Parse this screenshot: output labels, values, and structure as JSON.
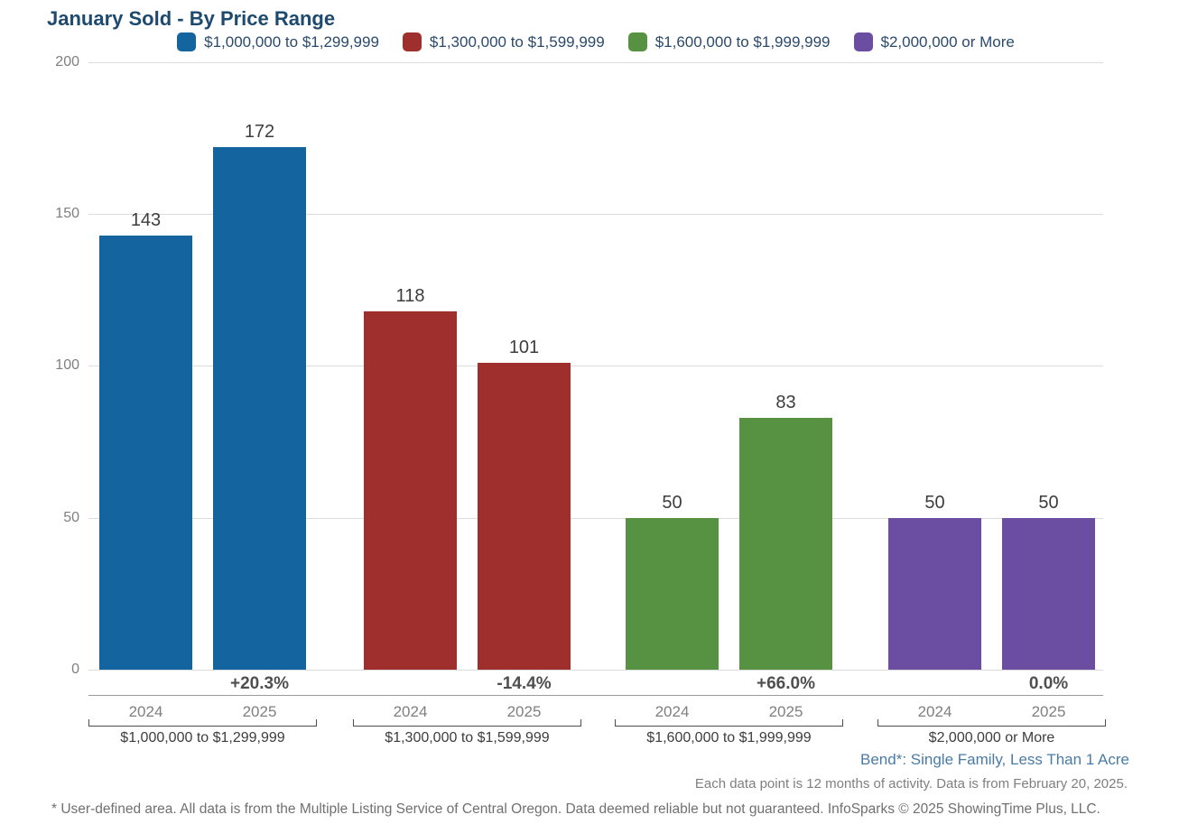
{
  "page": {
    "title": "January Sold - By Price Range"
  },
  "chart_data": {
    "type": "bar",
    "title": "January Sold - By Price Range",
    "categories": [
      "2024",
      "2025"
    ],
    "ylim": [
      0,
      200
    ],
    "yticks": [
      0,
      50,
      100,
      150,
      200
    ],
    "grid": true,
    "legend_position": "top",
    "groups": [
      {
        "label": "$1,000,000 to $1,299,999",
        "color": "#1464a0",
        "values": [
          143,
          172
        ],
        "change": "+20.3%"
      },
      {
        "label": "$1,300,000 to $1,599,999",
        "color": "#9e2f2c",
        "values": [
          118,
          101
        ],
        "change": "-14.4%"
      },
      {
        "label": "$1,600,000 to $1,999,999",
        "color": "#579243",
        "values": [
          50,
          83
        ],
        "change": "+66.0%"
      },
      {
        "label": "$2,000,000 or More",
        "color": "#6b4da2",
        "values": [
          50,
          50
        ],
        "change": "0.0%"
      }
    ]
  },
  "footer": {
    "area_label": "Bend*: Single Family, Less Than 1 Acre",
    "data_note": "Each data point is 12 months of activity. Data is from February 20, 2025.",
    "disclaimer": "* User-defined area. All data is from the Multiple Listing Service of Central Oregon. Data deemed reliable but not guaranteed. InfoSparks © 2025 ShowingTime Plus, LLC."
  }
}
